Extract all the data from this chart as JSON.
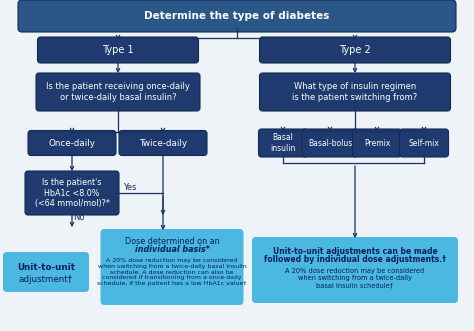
{
  "title": "Determine the type of diabetes",
  "type1_label": "Type 1",
  "type2_label": "Type 2",
  "q1": "Is the patient receiving once-daily\nor twice-daily basal insulin?",
  "q2": "What type of insulin regimen\nis the patient switching from?",
  "once_daily": "Once-daily",
  "twice_daily": "Twice-daily",
  "basal": "Basal\ninsulin",
  "basal_bolus": "Basal-bolus",
  "premix": "Premix",
  "self_mix": "Self-mix",
  "q3": "Is the patient's\nHbA1c <8.0%\n(<64 mmol/mol)?*",
  "yes": "Yes",
  "no": "No",
  "result1_line1": "Unit-to-unit",
  "result1_line2": "adjustment†",
  "result2_line1": "Dose determined on an",
  "result2_line2": "individual basis*",
  "result2_body": "A 20% dose reduction may be considered\nwhen switching from a twice-daily basal insulin\nschedule. A dose reduction can also be\nconsidered if transitioning from a once-daily\nschedule, if the patient has a low HbA1c value†",
  "result3_line1": "Unit-to-unit adjustments can be made",
  "result3_line2": "followed by individual dose adjustments.†",
  "result3_body": "A 20% dose reduction may be considered\nwhen switching from a twice-daily\nbasal insulin schedule†",
  "dark_navy": "#1a3263",
  "medium_navy": "#1e3a6e",
  "title_blue": "#2a5788",
  "light_cyan": "#4fc3e8",
  "lighter_cyan": "#5dcfef",
  "result_blue": "#4ab8e0",
  "arrow_dark": "#1a3263",
  "bg_color": "#eef3f8",
  "border_navy": "#152a52",
  "result_text": "#0a1f5c",
  "white": "#ffffff"
}
